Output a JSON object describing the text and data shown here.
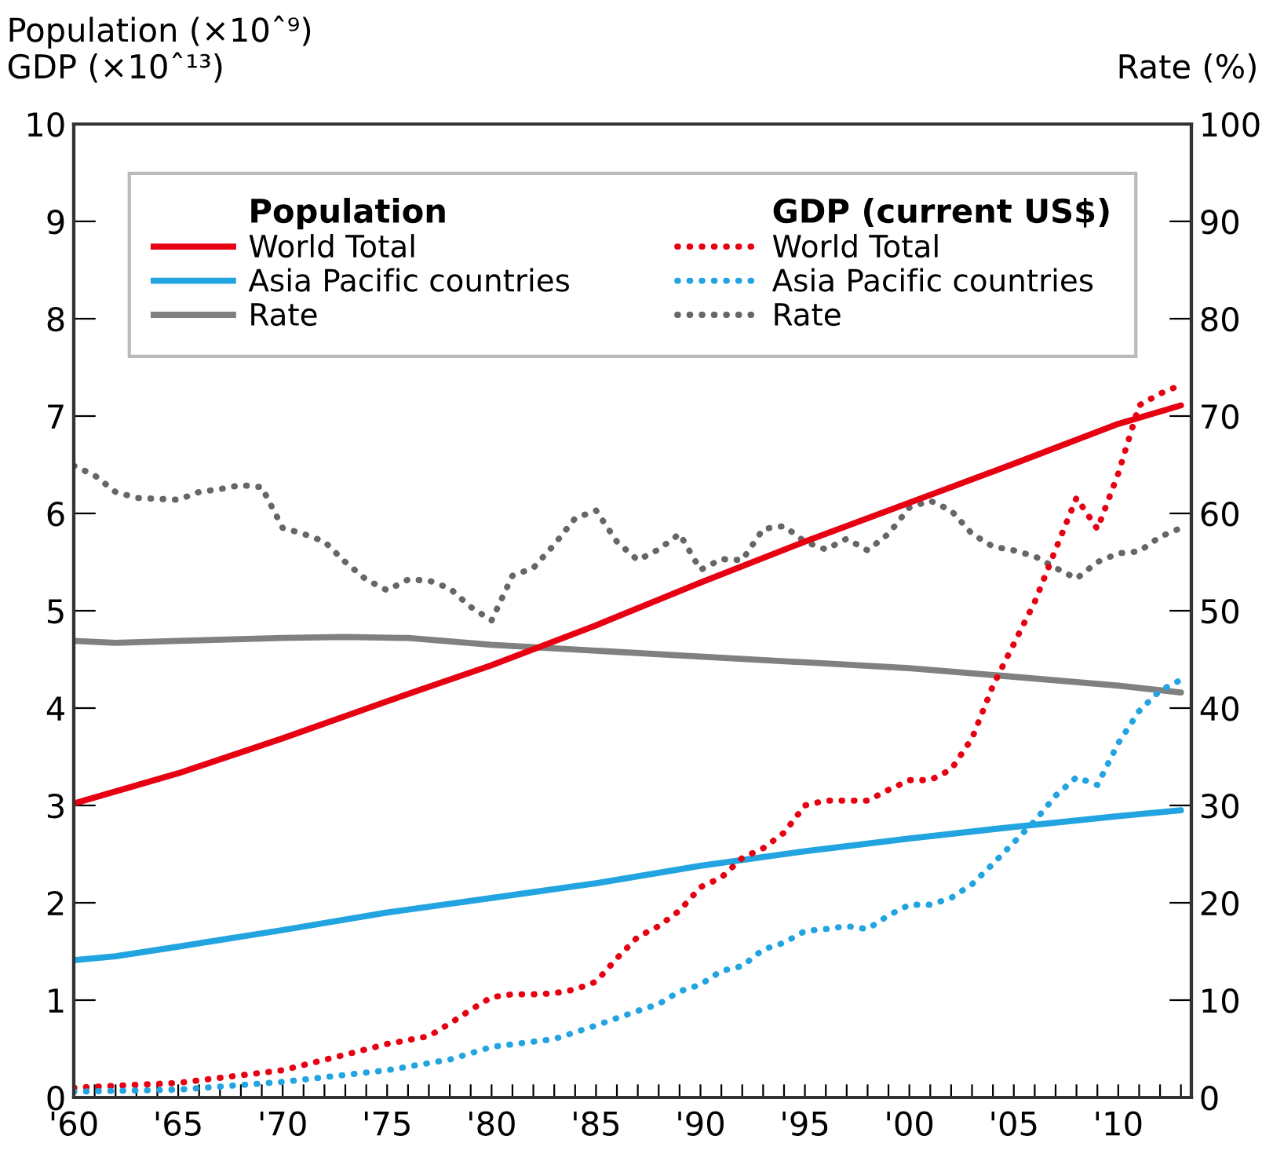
{
  "chart_data": {
    "type": "line",
    "ylabel": "Population (×10ˆ⁹)\nGDP (×10ˆ¹³)",
    "y2label": "Rate (%)",
    "annotations": [
      "Population",
      "GDP (current US$)"
    ],
    "xlim": [
      1960,
      2013.5
    ],
    "ylim": [
      0,
      10
    ],
    "y2lim": [
      0,
      100
    ],
    "yticks": [
      0,
      1,
      2,
      3,
      4,
      5,
      6,
      7,
      8,
      9,
      10
    ],
    "y2ticks": [
      0,
      10,
      20,
      30,
      40,
      50,
      60,
      70,
      80,
      90,
      100
    ],
    "xticks": [
      {
        "value": 1960,
        "label": "'60"
      },
      {
        "value": 1961,
        "label": null
      },
      {
        "value": 1962,
        "label": null
      },
      {
        "value": 1963,
        "label": null
      },
      {
        "value": 1964,
        "label": null
      },
      {
        "value": 1965,
        "label": "'65"
      },
      {
        "value": 1966,
        "label": null
      },
      {
        "value": 1967,
        "label": null
      },
      {
        "value": 1968,
        "label": null
      },
      {
        "value": 1969,
        "label": null
      },
      {
        "value": 1970,
        "label": "'70"
      },
      {
        "value": 1971,
        "label": null
      },
      {
        "value": 1972,
        "label": null
      },
      {
        "value": 1973,
        "label": null
      },
      {
        "value": 1974,
        "label": null
      },
      {
        "value": 1975,
        "label": "'75"
      },
      {
        "value": 1976,
        "label": null
      },
      {
        "value": 1977,
        "label": null
      },
      {
        "value": 1978,
        "label": null
      },
      {
        "value": 1979,
        "label": null
      },
      {
        "value": 1980,
        "label": "'80"
      },
      {
        "value": 1981,
        "label": null
      },
      {
        "value": 1982,
        "label": null
      },
      {
        "value": 1983,
        "label": null
      },
      {
        "value": 1984,
        "label": null
      },
      {
        "value": 1985,
        "label": "'85"
      },
      {
        "value": 1986,
        "label": null
      },
      {
        "value": 1987,
        "label": null
      },
      {
        "value": 1988,
        "label": null
      },
      {
        "value": 1989,
        "label": null
      },
      {
        "value": 1990,
        "label": "'90"
      },
      {
        "value": 1991,
        "label": null
      },
      {
        "value": 1992,
        "label": null
      },
      {
        "value": 1993,
        "label": null
      },
      {
        "value": 1994,
        "label": null
      },
      {
        "value": 1995,
        "label": "'95"
      },
      {
        "value": 1996,
        "label": null
      },
      {
        "value": 1997,
        "label": null
      },
      {
        "value": 1998,
        "label": null
      },
      {
        "value": 1999,
        "label": null
      },
      {
        "value": 2000,
        "label": "'00"
      },
      {
        "value": 2001,
        "label": null
      },
      {
        "value": 2002,
        "label": null
      },
      {
        "value": 2003,
        "label": null
      },
      {
        "value": 2004,
        "label": null
      },
      {
        "value": 2005,
        "label": "'05"
      },
      {
        "value": 2006,
        "label": null
      },
      {
        "value": 2007,
        "label": null
      },
      {
        "value": 2008,
        "label": null
      },
      {
        "value": 2009,
        "label": null
      },
      {
        "value": 2010,
        "label": "'10"
      },
      {
        "value": 2011,
        "label": null
      },
      {
        "value": 2012,
        "label": null
      },
      {
        "value": 2013,
        "label": null
      }
    ],
    "grid": false,
    "legend": "top",
    "series": [
      {
        "name": "World Total",
        "color": "#e60012",
        "line_style": "solid",
        "x": [
          1960,
          1965,
          1970,
          1975,
          1980,
          1985,
          1990,
          1995,
          2000,
          2005,
          2010,
          2013
        ],
        "values": [
          3.02,
          3.33,
          3.69,
          4.07,
          4.44,
          4.85,
          5.29,
          5.71,
          6.11,
          6.51,
          6.92,
          7.11
        ]
      },
      {
        "name": "Asia Pacific countries",
        "color": "#22a4e0",
        "line_style": "solid",
        "x": [
          1960,
          1962,
          1965,
          1970,
          1975,
          1980,
          1985,
          1990,
          1995,
          2000,
          2005,
          2010,
          2013
        ],
        "values": [
          1.41,
          1.45,
          1.55,
          1.72,
          1.9,
          2.05,
          2.2,
          2.38,
          2.53,
          2.66,
          2.78,
          2.89,
          2.95
        ]
      },
      {
        "name": "Rate",
        "color": "#808080",
        "line_style": "solid",
        "axis": "y2",
        "x": [
          1960,
          1962,
          1965,
          1970,
          1973,
          1976,
          1980,
          1985,
          1990,
          1995,
          2000,
          2004,
          2010,
          2013
        ],
        "values": [
          46.9,
          46.7,
          46.9,
          47.2,
          47.3,
          47.2,
          46.5,
          45.9,
          45.3,
          44.7,
          44.1,
          43.4,
          42.3,
          41.6
        ]
      },
      {
        "name": "World Total",
        "color": "#e60012",
        "line_style": "dotted",
        "x": [
          1960,
          1965,
          1970,
          1973,
          1975,
          1977,
          1978,
          1979,
          1980,
          1981,
          1982,
          1983,
          1984,
          1985,
          1986,
          1987,
          1988,
          1989,
          1990,
          1991,
          1992,
          1993,
          1994,
          1995,
          1996,
          1997,
          1998,
          1999,
          2000,
          2001,
          2002,
          2003,
          2004,
          2005,
          2006,
          2007,
          2008,
          2009,
          2010,
          2011,
          2012,
          2013
        ],
        "values": [
          0.1,
          0.15,
          0.28,
          0.44,
          0.55,
          0.63,
          0.76,
          0.9,
          1.03,
          1.06,
          1.06,
          1.07,
          1.11,
          1.19,
          1.43,
          1.65,
          1.76,
          1.92,
          2.16,
          2.26,
          2.46,
          2.56,
          2.72,
          3.0,
          3.05,
          3.05,
          3.05,
          3.16,
          3.26,
          3.26,
          3.37,
          3.69,
          4.23,
          4.66,
          5.09,
          5.63,
          6.16,
          5.84,
          6.41,
          7.11,
          7.23,
          7.32
        ]
      },
      {
        "name": "Asia Pacific countries",
        "color": "#22a4e0",
        "line_style": "dotted",
        "x": [
          1960,
          1965,
          1970,
          1975,
          1978,
          1980,
          1983,
          1985,
          1987,
          1988,
          1989,
          1990,
          1991,
          1992,
          1993,
          1994,
          1995,
          1996,
          1997,
          1998,
          1999,
          2000,
          2001,
          2002,
          2003,
          2004,
          2005,
          2006,
          2007,
          2008,
          2009,
          2010,
          2011,
          2012,
          2013
        ],
        "values": [
          0.06,
          0.08,
          0.16,
          0.28,
          0.39,
          0.52,
          0.6,
          0.74,
          0.89,
          0.96,
          1.09,
          1.16,
          1.3,
          1.35,
          1.52,
          1.59,
          1.71,
          1.73,
          1.76,
          1.73,
          1.87,
          1.98,
          1.98,
          2.05,
          2.19,
          2.4,
          2.62,
          2.84,
          3.1,
          3.29,
          3.21,
          3.64,
          3.97,
          4.18,
          4.29
        ]
      },
      {
        "name": "Rate",
        "color": "#666666",
        "line_style": "dotted",
        "axis": "y2",
        "x": [
          1960,
          1961,
          1962,
          1963,
          1964,
          1965,
          1966,
          1967,
          1968,
          1969,
          1970,
          1971,
          1972,
          1973,
          1974,
          1975,
          1976,
          1977,
          1978,
          1979,
          1980,
          1981,
          1982,
          1983,
          1984,
          1985,
          1986,
          1987,
          1988,
          1989,
          1990,
          1991,
          1992,
          1993,
          1994,
          1995,
          1996,
          1997,
          1998,
          1999,
          2000,
          2001,
          2002,
          2003,
          2004,
          2005,
          2006,
          2007,
          2008,
          2009,
          2010,
          2011,
          2012,
          2013
        ],
        "values": [
          64.9,
          63.9,
          62.2,
          61.6,
          61.5,
          61.4,
          62.2,
          62.5,
          62.9,
          62.7,
          58.5,
          57.9,
          57.1,
          55.0,
          53.2,
          52.1,
          53.2,
          53.1,
          52.3,
          50.4,
          49.0,
          53.6,
          54.4,
          56.8,
          59.5,
          60.3,
          57.1,
          55.2,
          56.3,
          57.9,
          54.2,
          55.3,
          55.2,
          58.4,
          58.7,
          57.1,
          56.3,
          57.4,
          56.2,
          57.9,
          60.6,
          61.3,
          60.3,
          57.9,
          56.6,
          56.2,
          55.6,
          54.4,
          53.3,
          55.0,
          55.9,
          56.1,
          57.6,
          58.5
        ]
      }
    ]
  }
}
